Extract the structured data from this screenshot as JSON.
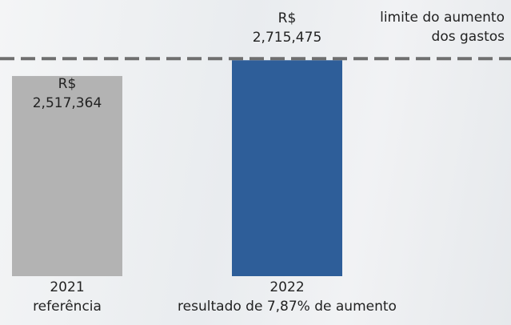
{
  "chart_data": {
    "type": "bar",
    "categories": [
      "2021\nreferência",
      "2022\nresultado de 7,87% de aumento"
    ],
    "values": [
      2517364,
      2715475
    ],
    "value_labels": [
      "R$\n2,517,364",
      "R$\n2,715,475"
    ],
    "colors": [
      "#b3b3b3",
      "#2e5e99"
    ],
    "ylim": [
      0,
      3000000
    ],
    "annotation": "limite do aumento\ndos gastos"
  }
}
